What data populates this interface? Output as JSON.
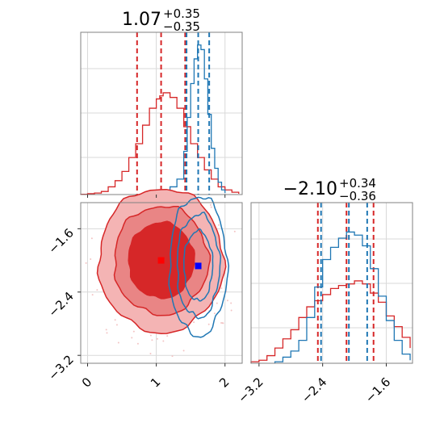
{
  "chart_data": {
    "type": "corner",
    "titles": {
      "param1": {
        "main": "1.07",
        "sup": "+0.35",
        "sub": "−0.35"
      },
      "param2": {
        "main": "−2.10",
        "sup": "+0.34",
        "sub": "−0.36"
      }
    },
    "param1_axis": {
      "range": [
        -0.1,
        2.25
      ],
      "ticks": [
        0,
        1,
        2
      ],
      "tick_labels": [
        "0",
        "1",
        "2"
      ]
    },
    "param2_axis": {
      "range": [
        -3.3,
        -1.27
      ],
      "ticks": [
        -3.2,
        -2.4,
        -1.6
      ],
      "tick_labels": [
        "−3.2",
        "−2.4",
        "−1.6"
      ]
    },
    "grid": true,
    "colors": {
      "red": "#d62728",
      "blue": "#1f77b4",
      "red_fill_outer": "#f0a0a0",
      "red_fill_mid": "#e87878"
    },
    "series": [
      {
        "color": "red",
        "param1_quantiles": [
          0.72,
          1.07,
          1.42
        ],
        "param2_quantiles": [
          -2.46,
          -2.1,
          -1.76
        ],
        "center": [
          1.07,
          -2.0
        ],
        "spread": [
          0.52,
          0.52
        ],
        "hist_param1": [
          [
            -0.1,
            0.002
          ],
          [
            0.0,
            0.006
          ],
          [
            0.1,
            0.01
          ],
          [
            0.2,
            0.02
          ],
          [
            0.3,
            0.05
          ],
          [
            0.4,
            0.09
          ],
          [
            0.5,
            0.15
          ],
          [
            0.6,
            0.24
          ],
          [
            0.7,
            0.33
          ],
          [
            0.8,
            0.45
          ],
          [
            0.9,
            0.56
          ],
          [
            1.0,
            0.62
          ],
          [
            1.05,
            0.64
          ],
          [
            1.1,
            0.66
          ],
          [
            1.2,
            0.63
          ],
          [
            1.3,
            0.56
          ],
          [
            1.4,
            0.44
          ],
          [
            1.5,
            0.33
          ],
          [
            1.6,
            0.24
          ],
          [
            1.7,
            0.16
          ],
          [
            1.8,
            0.1
          ],
          [
            1.9,
            0.05
          ],
          [
            2.0,
            0.03
          ],
          [
            2.1,
            0.015
          ],
          [
            2.2,
            0.005
          ]
        ],
        "hist_param2": [
          [
            -3.3,
            0.01
          ],
          [
            -3.2,
            0.02
          ],
          [
            -3.1,
            0.05
          ],
          [
            -3.0,
            0.1
          ],
          [
            -2.9,
            0.16
          ],
          [
            -2.8,
            0.22
          ],
          [
            -2.7,
            0.3
          ],
          [
            -2.6,
            0.37
          ],
          [
            -2.5,
            0.41
          ],
          [
            -2.4,
            0.45
          ],
          [
            -2.3,
            0.49
          ],
          [
            -2.2,
            0.51
          ],
          [
            -2.1,
            0.52
          ],
          [
            -2.0,
            0.54
          ],
          [
            -1.9,
            0.52
          ],
          [
            -1.8,
            0.46
          ],
          [
            -1.7,
            0.4
          ],
          [
            -1.6,
            0.31
          ],
          [
            -1.5,
            0.24
          ],
          [
            -1.4,
            0.17
          ],
          [
            -1.3,
            0.1
          ]
        ]
      },
      {
        "color": "blue",
        "param1_quantiles": [
          1.44,
          1.61,
          1.77
        ],
        "param2_quantiles": [
          -2.42,
          -2.07,
          -1.84
        ],
        "center": [
          1.61,
          -2.07
        ],
        "spread": [
          0.2,
          0.42
        ],
        "hist_param1": [
          [
            1.0,
            0.0
          ],
          [
            1.1,
            0.02
          ],
          [
            1.2,
            0.05
          ],
          [
            1.3,
            0.1
          ],
          [
            1.4,
            0.28
          ],
          [
            1.45,
            0.5
          ],
          [
            1.5,
            0.72
          ],
          [
            1.55,
            0.88
          ],
          [
            1.6,
            0.97
          ],
          [
            1.65,
            0.94
          ],
          [
            1.7,
            0.75
          ],
          [
            1.75,
            0.52
          ],
          [
            1.8,
            0.3
          ],
          [
            1.85,
            0.17
          ],
          [
            1.9,
            0.08
          ],
          [
            1.95,
            0.03
          ],
          [
            2.0,
            0.01
          ]
        ],
        "hist_param2": [
          [
            -3.0,
            0.01
          ],
          [
            -2.9,
            0.04
          ],
          [
            -2.8,
            0.08
          ],
          [
            -2.7,
            0.15
          ],
          [
            -2.6,
            0.3
          ],
          [
            -2.5,
            0.5
          ],
          [
            -2.4,
            0.68
          ],
          [
            -2.3,
            0.76
          ],
          [
            -2.2,
            0.82
          ],
          [
            -2.1,
            0.86
          ],
          [
            -2.0,
            0.84
          ],
          [
            -1.9,
            0.77
          ],
          [
            -1.8,
            0.62
          ],
          [
            -1.7,
            0.44
          ],
          [
            -1.6,
            0.28
          ],
          [
            -1.5,
            0.15
          ],
          [
            -1.4,
            0.06
          ],
          [
            -1.3,
            0.02
          ]
        ]
      }
    ]
  }
}
